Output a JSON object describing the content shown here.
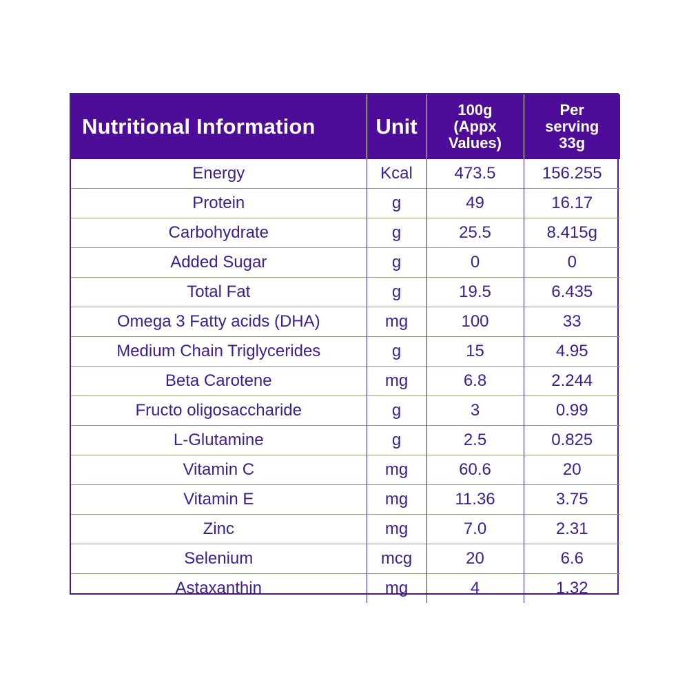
{
  "table": {
    "headers": {
      "nutrient": "Nutritional Information",
      "unit": "Unit",
      "per100": [
        "100g",
        "(Appx",
        "Values)"
      ],
      "perServing": [
        "Per",
        "serving",
        "33g"
      ]
    },
    "rows": [
      {
        "nutrient": "Energy",
        "unit": "Kcal",
        "per100": "473.5",
        "perServing": "156.255"
      },
      {
        "nutrient": "Protein",
        "unit": "g",
        "per100": "49",
        "perServing": "16.17"
      },
      {
        "nutrient": "Carbohydrate",
        "unit": "g",
        "per100": "25.5",
        "perServing": "8.415g"
      },
      {
        "nutrient": "Added Sugar",
        "unit": "g",
        "per100": "0",
        "perServing": "0"
      },
      {
        "nutrient": "Total Fat",
        "unit": "g",
        "per100": "19.5",
        "perServing": "6.435"
      },
      {
        "nutrient": "Omega 3 Fatty acids (DHA)",
        "unit": "mg",
        "per100": "100",
        "perServing": "33"
      },
      {
        "nutrient": "Medium Chain Triglycerides",
        "unit": "g",
        "per100": "15",
        "perServing": "4.95"
      },
      {
        "nutrient": "Beta Carotene",
        "unit": "mg",
        "per100": "6.8",
        "perServing": "2.244"
      },
      {
        "nutrient": "Fructo oligosaccharide",
        "unit": "g",
        "per100": "3",
        "perServing": "0.99"
      },
      {
        "nutrient": "L-Glutamine",
        "unit": "g",
        "per100": "2.5",
        "perServing": "0.825"
      },
      {
        "nutrient": "Vitamin C",
        "unit": "mg",
        "per100": "60.6",
        "perServing": "20"
      },
      {
        "nutrient": "Vitamin E",
        "unit": "mg",
        "per100": "11.36",
        "perServing": "3.75"
      },
      {
        "nutrient": "Zinc",
        "unit": "mg",
        "per100": "7.0",
        "perServing": "2.31"
      },
      {
        "nutrient": "Selenium",
        "unit": "mcg",
        "per100": "20",
        "perServing": "6.6"
      },
      {
        "nutrient": "Astaxanthin",
        "unit": "mg",
        "per100": "4",
        "perServing": "1.32"
      }
    ]
  },
  "colors": {
    "header_bg": "#4d0d98",
    "header_text": "#ffffff",
    "body_text": "#3d1e8e",
    "row_divider": "#8aa07a"
  }
}
